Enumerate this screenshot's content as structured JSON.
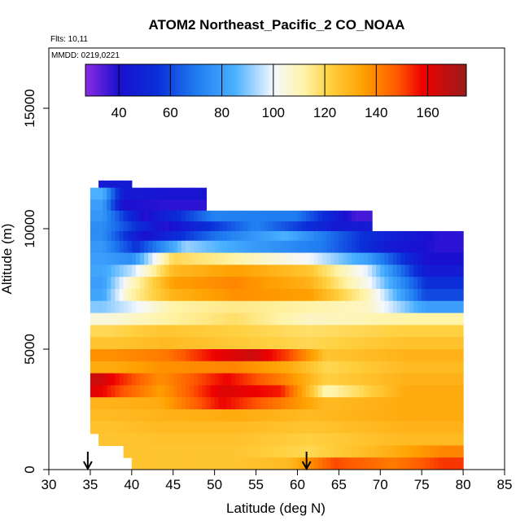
{
  "chart_data": {
    "type": "heatmap",
    "title": "ATOM2 Northeast_Pacific_2 CO_NOAA",
    "flights_label": "Flts: 10,11",
    "mmdd_label": "MMDD: 0219,0221",
    "xlabel": "Latitude (deg N)",
    "ylabel": "Altitude (m)",
    "xlim": [
      30,
      85
    ],
    "ylim": [
      0,
      17500
    ],
    "x_ticks": [
      "30",
      "35",
      "40",
      "45",
      "50",
      "55",
      "60",
      "65",
      "70",
      "75",
      "80",
      "85"
    ],
    "y_ticks": [
      "0",
      "5000",
      "10000",
      "15000"
    ],
    "colorbar": {
      "range": [
        27,
        175
      ],
      "ticks": [
        "40",
        "60",
        "80",
        "100",
        "120",
        "140",
        "160"
      ],
      "stops": [
        {
          "v": 27,
          "color": "#8a2be2"
        },
        {
          "v": 40,
          "color": "#1a10d0"
        },
        {
          "v": 55,
          "color": "#0a2fd8"
        },
        {
          "v": 70,
          "color": "#1f7bf0"
        },
        {
          "v": 85,
          "color": "#4ab0ff"
        },
        {
          "v": 100,
          "color": "#f4f8ff"
        },
        {
          "v": 112,
          "color": "#fff4a8"
        },
        {
          "v": 122,
          "color": "#ffd040"
        },
        {
          "v": 135,
          "color": "#ffa000"
        },
        {
          "v": 148,
          "color": "#ff5a00"
        },
        {
          "v": 158,
          "color": "#ee0000"
        },
        {
          "v": 175,
          "color": "#9a1c1c"
        }
      ]
    },
    "band_rows": [
      {
        "alt": [
          11700,
          12000
        ],
        "x": [
          36,
          40
        ],
        "cells": [
          [
            36,
            40,
            45
          ]
        ]
      },
      {
        "alt": [
          11200,
          11700
        ],
        "x": [
          35,
          49
        ],
        "cells": [
          [
            35,
            38,
            85
          ],
          [
            38,
            40,
            45
          ],
          [
            40,
            49,
            42
          ]
        ]
      },
      {
        "alt": [
          10750,
          11200
        ],
        "x": [
          35,
          49
        ],
        "cells": [
          [
            35,
            38,
            80
          ],
          [
            38,
            40,
            40
          ],
          [
            40,
            49,
            38
          ]
        ]
      },
      {
        "alt": [
          10300,
          10750
        ],
        "x": [
          35,
          69
        ],
        "cells": [
          [
            35,
            38,
            78
          ],
          [
            38,
            45,
            38
          ],
          [
            45,
            55,
            72
          ],
          [
            55,
            65,
            70
          ],
          [
            65,
            69,
            35
          ]
        ]
      },
      {
        "alt": [
          9900,
          10300
        ],
        "x": [
          35,
          69
        ],
        "cells": [
          [
            35,
            38,
            75
          ],
          [
            38,
            50,
            38
          ],
          [
            50,
            60,
            72
          ],
          [
            60,
            69,
            45
          ]
        ]
      },
      {
        "alt": [
          9500,
          9900
        ],
        "x": [
          35,
          80
        ],
        "cells": [
          [
            35,
            38,
            75
          ],
          [
            38,
            45,
            40
          ],
          [
            45,
            55,
            68
          ],
          [
            55,
            62,
            85
          ],
          [
            62,
            74,
            55
          ],
          [
            74,
            80,
            38
          ]
        ]
      },
      {
        "alt": [
          9000,
          9500
        ],
        "x": [
          35,
          80
        ],
        "cells": [
          [
            35,
            38,
            78
          ],
          [
            38,
            43,
            55
          ],
          [
            43,
            50,
            92
          ],
          [
            50,
            58,
            80
          ],
          [
            58,
            68,
            70
          ],
          [
            68,
            74,
            45
          ],
          [
            74,
            80,
            38
          ]
        ]
      },
      {
        "alt": [
          8500,
          9000
        ],
        "x": [
          35,
          80
        ],
        "cells": [
          [
            35,
            38,
            80
          ],
          [
            38,
            42,
            75
          ],
          [
            42,
            48,
            120
          ],
          [
            48,
            57,
            112
          ],
          [
            57,
            66,
            100
          ],
          [
            66,
            71,
            80
          ],
          [
            71,
            80,
            40
          ]
        ]
      },
      {
        "alt": [
          8000,
          8500
        ],
        "x": [
          35,
          80
        ],
        "cells": [
          [
            35,
            38,
            82
          ],
          [
            38,
            42,
            95
          ],
          [
            42,
            48,
            128
          ],
          [
            48,
            57,
            135
          ],
          [
            57,
            66,
            125
          ],
          [
            66,
            71,
            98
          ],
          [
            71,
            80,
            45
          ]
        ]
      },
      {
        "alt": [
          7500,
          8000
        ],
        "x": [
          35,
          80
        ],
        "cells": [
          [
            35,
            38,
            80
          ],
          [
            38,
            42,
            108
          ],
          [
            42,
            48,
            135
          ],
          [
            48,
            57,
            140
          ],
          [
            57,
            66,
            130
          ],
          [
            66,
            71,
            102
          ],
          [
            71,
            80,
            55
          ]
        ]
      },
      {
        "alt": [
          7000,
          7500
        ],
        "x": [
          35,
          80
        ],
        "cells": [
          [
            35,
            38,
            82
          ],
          [
            38,
            42,
            112
          ],
          [
            42,
            48,
            130
          ],
          [
            48,
            57,
            138
          ],
          [
            57,
            66,
            135
          ],
          [
            66,
            71,
            110
          ],
          [
            71,
            80,
            60
          ]
        ]
      },
      {
        "alt": [
          6500,
          7000
        ],
        "x": [
          35,
          80
        ],
        "cells": [
          [
            35,
            38,
            90
          ],
          [
            38,
            42,
            98
          ],
          [
            42,
            48,
            112
          ],
          [
            48,
            57,
            115
          ],
          [
            57,
            66,
            112
          ],
          [
            66,
            71,
            108
          ],
          [
            71,
            80,
            80
          ]
        ]
      },
      {
        "alt": [
          6000,
          6500
        ],
        "x": [
          35,
          80
        ],
        "cells": [
          [
            35,
            40,
            105
          ],
          [
            40,
            48,
            112
          ],
          [
            48,
            57,
            118
          ],
          [
            57,
            66,
            108
          ],
          [
            66,
            80,
            112
          ]
        ]
      },
      {
        "alt": [
          5500,
          6000
        ],
        "x": [
          35,
          80
        ],
        "cells": [
          [
            35,
            40,
            120
          ],
          [
            40,
            48,
            125
          ],
          [
            48,
            57,
            122
          ],
          [
            57,
            66,
            118
          ],
          [
            66,
            80,
            122
          ]
        ]
      },
      {
        "alt": [
          5000,
          5500
        ],
        "x": [
          35,
          80
        ],
        "cells": [
          [
            35,
            40,
            125
          ],
          [
            40,
            48,
            128
          ],
          [
            48,
            57,
            124
          ],
          [
            57,
            66,
            120
          ],
          [
            66,
            80,
            126
          ]
        ]
      },
      {
        "alt": [
          4500,
          5000
        ],
        "x": [
          35,
          80
        ],
        "cells": [
          [
            35,
            40,
            138
          ],
          [
            40,
            48,
            142
          ],
          [
            48,
            52,
            158
          ],
          [
            52,
            57,
            165
          ],
          [
            57,
            61,
            150
          ],
          [
            61,
            66,
            125
          ],
          [
            66,
            80,
            130
          ]
        ]
      },
      {
        "alt": [
          4000,
          4500
        ],
        "x": [
          35,
          80
        ],
        "cells": [
          [
            35,
            40,
            132
          ],
          [
            40,
            48,
            138
          ],
          [
            48,
            57,
            140
          ],
          [
            57,
            61,
            132
          ],
          [
            61,
            66,
            120
          ],
          [
            66,
            80,
            128
          ]
        ]
      },
      {
        "alt": [
          3500,
          4000
        ],
        "x": [
          35,
          80
        ],
        "cells": [
          [
            35,
            37,
            165
          ],
          [
            37,
            40,
            155
          ],
          [
            40,
            47,
            138
          ],
          [
            47,
            56,
            158
          ],
          [
            56,
            61,
            140
          ],
          [
            61,
            66,
            122
          ],
          [
            66,
            80,
            130
          ]
        ]
      },
      {
        "alt": [
          3000,
          3500
        ],
        "x": [
          35,
          80
        ],
        "cells": [
          [
            35,
            37,
            160
          ],
          [
            37,
            40,
            150
          ],
          [
            40,
            47,
            135
          ],
          [
            47,
            55,
            162
          ],
          [
            55,
            61,
            155
          ],
          [
            61,
            66,
            110
          ],
          [
            66,
            80,
            132
          ]
        ]
      },
      {
        "alt": [
          2500,
          3000
        ],
        "x": [
          35,
          80
        ],
        "cells": [
          [
            35,
            40,
            130
          ],
          [
            40,
            47,
            132
          ],
          [
            47,
            55,
            158
          ],
          [
            55,
            61,
            142
          ],
          [
            61,
            66,
            128
          ],
          [
            66,
            80,
            132
          ]
        ]
      },
      {
        "alt": [
          2000,
          2500
        ],
        "x": [
          35,
          80
        ],
        "cells": [
          [
            35,
            40,
            128
          ],
          [
            40,
            48,
            130
          ],
          [
            48,
            57,
            132
          ],
          [
            57,
            66,
            128
          ],
          [
            66,
            80,
            132
          ]
        ]
      },
      {
        "alt": [
          1500,
          2000
        ],
        "x": [
          35,
          80
        ],
        "cells": [
          [
            35,
            40,
            126
          ],
          [
            40,
            48,
            128
          ],
          [
            48,
            57,
            128
          ],
          [
            57,
            66,
            125
          ],
          [
            66,
            80,
            130
          ]
        ]
      },
      {
        "alt": [
          1000,
          1500
        ],
        "x": [
          36,
          80
        ],
        "cells": [
          [
            36,
            40,
            125
          ],
          [
            40,
            48,
            126
          ],
          [
            48,
            57,
            126
          ],
          [
            57,
            66,
            122
          ],
          [
            66,
            80,
            128
          ]
        ]
      },
      {
        "alt": [
          500,
          1000
        ],
        "x": [
          39,
          80
        ],
        "cells": [
          [
            39,
            48,
            125
          ],
          [
            48,
            57,
            125
          ],
          [
            57,
            66,
            120
          ],
          [
            66,
            75,
            130
          ],
          [
            75,
            80,
            140
          ]
        ]
      },
      {
        "alt": [
          0,
          500
        ],
        "x": [
          40,
          80
        ],
        "cells": [
          [
            40,
            48,
            125
          ],
          [
            48,
            57,
            125
          ],
          [
            57,
            61,
            128
          ],
          [
            61,
            68,
            150
          ],
          [
            68,
            75,
            142
          ],
          [
            75,
            80,
            152
          ]
        ]
      }
    ],
    "arrows_latitude": [
      34.7,
      61.1
    ]
  }
}
